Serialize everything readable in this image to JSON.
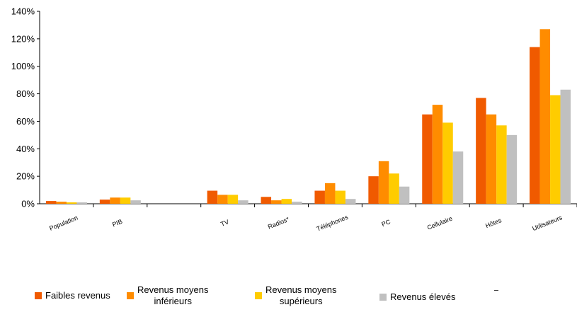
{
  "chart_data": {
    "type": "bar",
    "categories": [
      "Population",
      "PIB",
      "",
      "TV",
      "Radios*",
      "Téléphones",
      "PC",
      "Cellulaire",
      "Hôtes",
      "Utilisateurs"
    ],
    "series": [
      {
        "name": "Faibles revenus",
        "color": "#f05a00",
        "values": [
          2,
          3,
          null,
          9.5,
          5,
          9.5,
          20,
          65,
          77,
          114
        ]
      },
      {
        "name": "Revenus moyens\ninférieurs",
        "color": "#ff8c00",
        "values": [
          1.5,
          4.5,
          null,
          6.5,
          2.5,
          15,
          31,
          72,
          65,
          127
        ]
      },
      {
        "name": "Revenus moyens\nsupérieurs",
        "color": "#ffcc00",
        "values": [
          1,
          4.5,
          null,
          6.5,
          3.5,
          9.5,
          22,
          59,
          57,
          79
        ]
      },
      {
        "name": "Revenus élevés",
        "color": "#c0c0c0",
        "values": [
          1,
          2.5,
          null,
          2.5,
          1.5,
          3.5,
          12.5,
          38,
          50,
          83
        ]
      }
    ],
    "y_ticks": [
      "0%",
      "20%",
      "40%",
      "60%",
      "80%",
      "100%",
      "120%",
      "140%"
    ],
    "ylim": [
      0,
      140
    ],
    "grid": false,
    "legend_position": "bottom"
  }
}
